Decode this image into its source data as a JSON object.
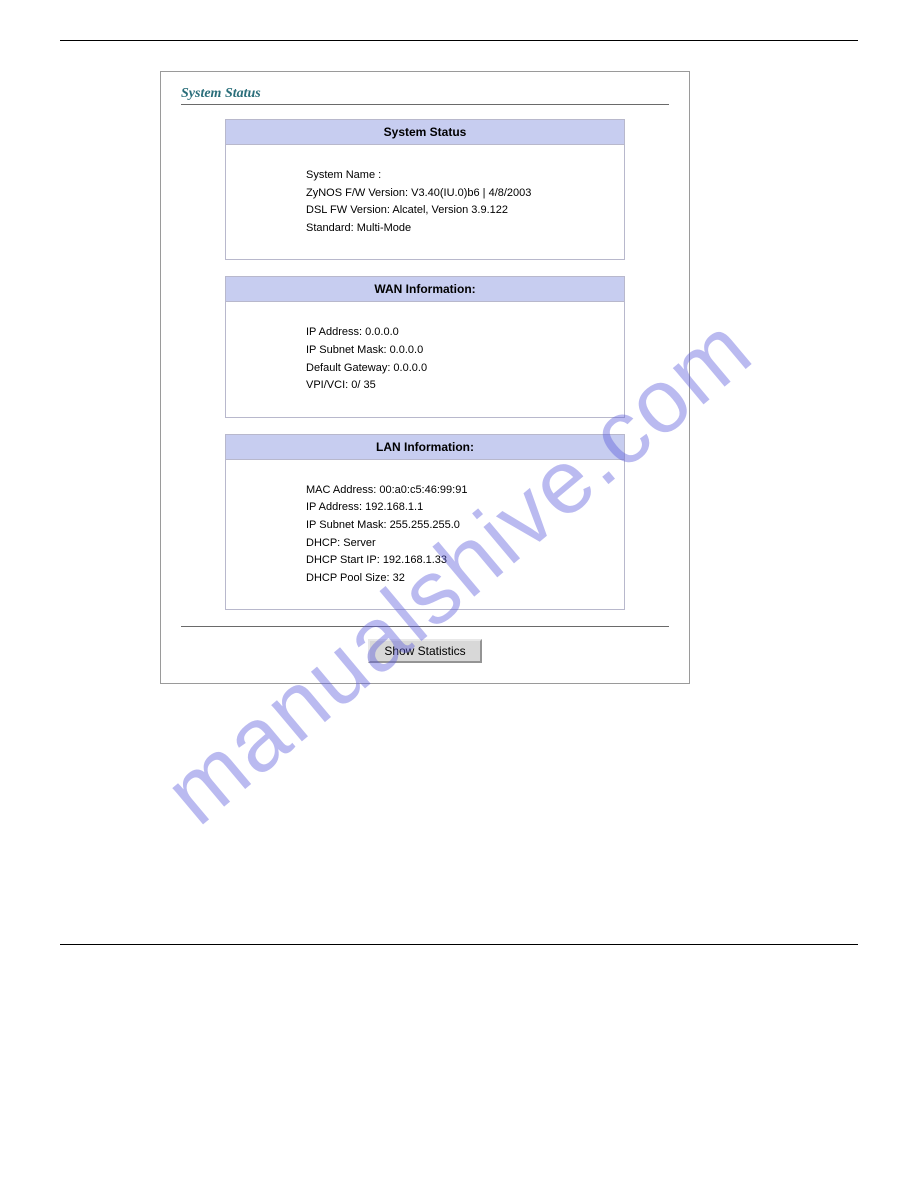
{
  "page": {
    "title": "System Status",
    "watermark": "manualshive.com",
    "colors": {
      "title_color": "#2a6e7a",
      "card_header_bg": "#c7cdf0",
      "card_border": "#b8b8cc",
      "panel_border": "#9a9a9a",
      "rule_color": "#6a6a6a",
      "button_bg": "#d8d8d8",
      "watermark_color": "rgba(90,90,220,0.42)",
      "text_color": "#000000",
      "background": "#ffffff"
    }
  },
  "cards": {
    "system_status": {
      "header": "System Status",
      "rows": [
        "System Name :",
        "ZyNOS F/W Version: V3.40(IU.0)b6 | 4/8/2003",
        "DSL FW Version: Alcatel, Version 3.9.122",
        "Standard: Multi-Mode"
      ]
    },
    "wan": {
      "header": "WAN Information:",
      "rows": [
        "IP Address: 0.0.0.0",
        "IP Subnet Mask: 0.0.0.0",
        "Default Gateway: 0.0.0.0",
        "VPI/VCI: 0/ 35"
      ]
    },
    "lan": {
      "header": "LAN Information:",
      "rows": [
        "MAC Address: 00:a0:c5:46:99:91",
        "IP Address: 192.168.1.1",
        "IP Subnet Mask: 255.255.255.0",
        "DHCP: Server",
        "DHCP Start IP: 192.168.1.33",
        "DHCP Pool Size: 32"
      ]
    }
  },
  "button": {
    "show_statistics": "Show Statistics"
  }
}
